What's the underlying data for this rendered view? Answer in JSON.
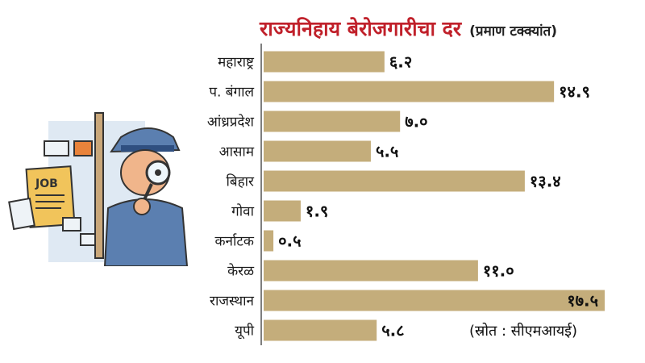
{
  "title": "राज्यनिहाय बेरोजगारीचा दर",
  "subtitle": "(प्रमाण टक्क्यांत)",
  "source": "(स्रोत : सीएमआयई)",
  "colors": {
    "bar": "#c4ad7b",
    "title": "#c0202a",
    "axis": "#555555"
  },
  "illustration": {
    "sign_text": "JOB"
  },
  "chart_data": {
    "type": "bar",
    "orientation": "horizontal",
    "categories": [
      "महाराष्ट्र",
      "प. बंगाल",
      "आंध्रप्रदेश",
      "आसाम",
      "बिहार",
      "गोवा",
      "कर्नाटक",
      "केरळ",
      "राजस्थान",
      "यूपी"
    ],
    "values": [
      6.2,
      14.9,
      7.0,
      5.5,
      13.4,
      1.9,
      0.5,
      11.0,
      17.5,
      5.8
    ],
    "value_labels": [
      "६.२",
      "१४.९",
      "७.०",
      "५.५",
      "१३.४",
      "१.९",
      "०.५",
      "११.०",
      "१७.५",
      "५.८"
    ],
    "xlim": [
      0,
      17.5
    ],
    "grid": false
  }
}
